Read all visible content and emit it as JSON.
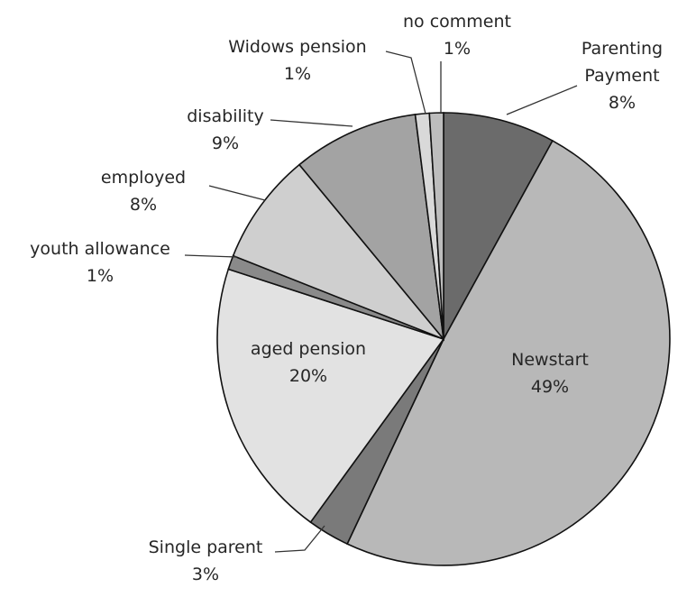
{
  "chart_data": {
    "type": "pie",
    "title": "",
    "slices": [
      {
        "name": "Parenting Payment",
        "label_lines": [
          "Parenting",
          "Payment"
        ],
        "value": 8,
        "value_label": "8%",
        "color": "#6b6b6b"
      },
      {
        "name": "Newstart",
        "label_lines": [
          "Newstart"
        ],
        "value": 49,
        "value_label": "49%",
        "color": "#b8b8b8"
      },
      {
        "name": "Single parent",
        "label_lines": [
          "Single parent"
        ],
        "value": 3,
        "value_label": "3%",
        "color": "#7a7a7a"
      },
      {
        "name": "aged pension",
        "label_lines": [
          "aged pension"
        ],
        "value": 20,
        "value_label": "20%",
        "color": "#e2e2e2"
      },
      {
        "name": "youth allowance",
        "label_lines": [
          "youth allowance"
        ],
        "value": 1,
        "value_label": "1%",
        "color": "#8a8a8a"
      },
      {
        "name": "employed",
        "label_lines": [
          "employed"
        ],
        "value": 8,
        "value_label": "8%",
        "color": "#cfcfcf"
      },
      {
        "name": "disability",
        "label_lines": [
          "disability"
        ],
        "value": 9,
        "value_label": "9%",
        "color": "#a3a3a3"
      },
      {
        "name": "Widows pension",
        "label_lines": [
          "Widows pension"
        ],
        "value": 1,
        "value_label": "1%",
        "color": "#d9d9d9"
      },
      {
        "name": "no comment",
        "label_lines": [
          "no comment"
        ],
        "value": 1,
        "value_label": "1%",
        "color": "#bdbdbd"
      }
    ],
    "legend": "none",
    "labels": "data labels with leader lines"
  }
}
